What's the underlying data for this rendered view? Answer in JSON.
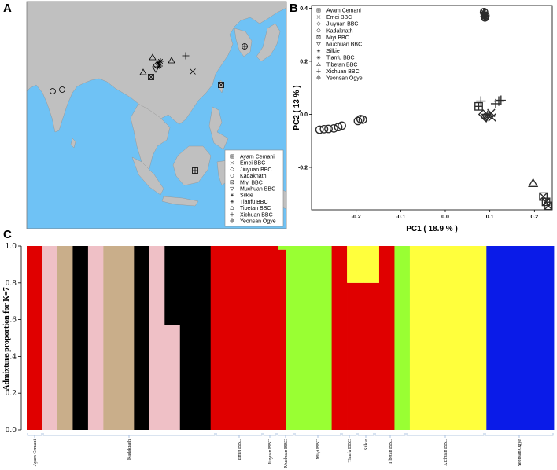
{
  "panels": {
    "a": "A",
    "b": "B",
    "c": "C"
  },
  "colors": {
    "ocean": "#6fc2f5",
    "land": "#c0c0c0",
    "map_border": "#7a7a7a"
  },
  "breeds": [
    {
      "name": "Ayam Cemani",
      "marker": "boxplus"
    },
    {
      "name": "Emei BBC",
      "marker": "x"
    },
    {
      "name": "Jiuyuan BBC",
      "marker": "diamond"
    },
    {
      "name": "Kadaknath",
      "marker": "circle"
    },
    {
      "name": "Miyi BBC",
      "marker": "boxx"
    },
    {
      "name": "Muchuan BBC",
      "marker": "tridown"
    },
    {
      "name": "Silkie",
      "marker": "star"
    },
    {
      "name": "Tianfu BBC",
      "marker": "asterisk"
    },
    {
      "name": "Tibetan BBC",
      "marker": "triup"
    },
    {
      "name": "Xichuan BBC",
      "marker": "plus"
    },
    {
      "name": "Yeonsan Ogye",
      "marker": "circleplus"
    }
  ],
  "chart_data": [
    {
      "type": "scatter",
      "panel": "B",
      "xlabel": "PC1 ( 18.9 % )",
      "ylabel": "PC2 ( 13 % )",
      "xlim": [
        -0.3,
        0.24
      ],
      "ylim": [
        -0.36,
        0.41
      ],
      "xticks": [
        "-0.2",
        "-0.1",
        "0.0",
        "0.1",
        "0.2"
      ],
      "xtick_values": [
        -0.2,
        -0.1,
        0.0,
        0.1,
        0.2
      ],
      "yticks": [
        "-0.2",
        "0.0",
        "0.2",
        "0.4"
      ],
      "ytick_values": [
        -0.2,
        0.0,
        0.2,
        0.4
      ],
      "series": [
        {
          "name": "Ayam Cemani",
          "marker": "boxplus",
          "points": [
            [
              0.075,
              0.03
            ]
          ]
        },
        {
          "name": "Emei BBC",
          "marker": "x",
          "points": [
            [
              0.097,
              -0.005
            ],
            [
              0.103,
              0.005
            ],
            [
              0.105,
              -0.012
            ]
          ]
        },
        {
          "name": "Jiuyuan BBC",
          "marker": "diamond",
          "points": [
            [
              0.085,
              0.0
            ],
            [
              0.09,
              -0.01
            ]
          ]
        },
        {
          "name": "Kadaknath",
          "marker": "circle",
          "points": [
            [
              -0.282,
              -0.058
            ],
            [
              -0.272,
              -0.056
            ],
            [
              -0.262,
              -0.055
            ],
            [
              -0.25,
              -0.053
            ],
            [
              -0.24,
              -0.048
            ],
            [
              -0.232,
              -0.043
            ],
            [
              -0.196,
              -0.025
            ],
            [
              -0.19,
              -0.018
            ],
            [
              -0.185,
              -0.02
            ]
          ]
        },
        {
          "name": "Miyi BBC",
          "marker": "boxx",
          "points": [
            [
              0.22,
              -0.31
            ],
            [
              0.226,
              -0.33
            ],
            [
              0.231,
              -0.345
            ]
          ]
        },
        {
          "name": "Muchuan BBC",
          "marker": "tridown",
          "points": [
            [
              0.092,
              -0.012
            ]
          ]
        },
        {
          "name": "Silkie",
          "marker": "star",
          "points": [
            [
              0.086,
              0.385
            ],
            [
              0.088,
              0.376
            ],
            [
              0.089,
              0.368
            ],
            [
              0.087,
              0.37
            ]
          ]
        },
        {
          "name": "Tianfu BBC",
          "marker": "asterisk",
          "points": [
            [
              0.095,
              -0.002
            ]
          ]
        },
        {
          "name": "Tibetan BBC",
          "marker": "triup",
          "points": [
            [
              0.197,
              -0.26
            ]
          ]
        },
        {
          "name": "Xichuan BBC",
          "marker": "plus",
          "points": [
            [
              0.08,
              0.05
            ],
            [
              0.113,
              0.04
            ],
            [
              0.12,
              0.05
            ],
            [
              0.125,
              0.053
            ]
          ]
        },
        {
          "name": "Yeonsan Ogye",
          "marker": "circleplus",
          "points": [
            [
              0.087,
              0.385
            ],
            [
              0.09,
              0.372
            ],
            [
              0.089,
              0.365
            ]
          ]
        }
      ]
    },
    {
      "type": "bar",
      "panel": "C",
      "stacked": true,
      "ylabel": "Admixture proportion for K=7",
      "ylim": [
        0,
        1
      ],
      "yticks": [
        "0.0",
        "0.2",
        "0.4",
        "0.6",
        "0.8",
        "1.0"
      ],
      "ytick_values": [
        0,
        0.2,
        0.4,
        0.6,
        0.8,
        1.0
      ],
      "components": [
        "red",
        "pink",
        "tan",
        "black",
        "green",
        "yellow",
        "blue"
      ],
      "component_colors": {
        "red": "#e00000",
        "pink": "#efc0c6",
        "tan": "#c9ae8a",
        "black": "#000000",
        "green": "#99ff33",
        "yellow": "#ffff3c",
        "blue": "#0a1be8"
      },
      "groups": [
        {
          "name": "Ayam Cemani",
          "weight": 1
        },
        {
          "name": "Kadaknath",
          "weight": 11
        },
        {
          "name": "Emei BBC",
          "weight": 3
        },
        {
          "name": "Jiuyuan BBC",
          "weight": 0.9
        },
        {
          "name": "Muchuan BBC",
          "weight": 1.1
        },
        {
          "name": "Miyi BBC",
          "weight": 3
        },
        {
          "name": "Tianfu BBC",
          "weight": 1
        },
        {
          "name": "Silkie",
          "weight": 1.1
        },
        {
          "name": "Tibetan BBC",
          "weight": 2
        },
        {
          "name": "Xichuan BBC",
          "weight": 5
        },
        {
          "name": "Yeonsan Ogye",
          "weight": 4.4
        }
      ],
      "segments": [
        {
          "weight": 1.0,
          "p": {
            "red": 1
          }
        },
        {
          "weight": 1.0,
          "p": {
            "pink": 1
          }
        },
        {
          "weight": 1.0,
          "p": {
            "tan": 1
          }
        },
        {
          "weight": 1.0,
          "p": {
            "black": 1
          }
        },
        {
          "weight": 1.0,
          "p": {
            "pink": 1
          }
        },
        {
          "weight": 2.0,
          "p": {
            "tan": 1
          }
        },
        {
          "weight": 1.0,
          "p": {
            "black": 1
          }
        },
        {
          "weight": 1.0,
          "p": {
            "pink": 1
          }
        },
        {
          "weight": 1.0,
          "p": {
            "pink": 0.57,
            "black": 0.43
          }
        },
        {
          "weight": 2.0,
          "p": {
            "black": 1
          }
        },
        {
          "weight": 3.0,
          "p": {
            "red": 1
          }
        },
        {
          "weight": 0.9,
          "p": {
            "red": 1
          }
        },
        {
          "weight": 0.5,
          "p": {
            "red": 1
          }
        },
        {
          "weight": 0.5,
          "p": {
            "red": 0.98,
            "green": 0.02
          }
        },
        {
          "weight": 3.0,
          "p": {
            "green": 1
          }
        },
        {
          "weight": 1.0,
          "p": {
            "red": 1
          }
        },
        {
          "weight": 1.1,
          "p": {
            "red": 0.8,
            "yellow": 0.2
          }
        },
        {
          "weight": 1.0,
          "p": {
            "red": 0.8,
            "yellow": 0.2
          }
        },
        {
          "weight": 1.0,
          "p": {
            "red": 1
          }
        },
        {
          "weight": 1.0,
          "p": {
            "green": 1
          }
        },
        {
          "weight": 5.0,
          "p": {
            "yellow": 1
          }
        },
        {
          "weight": 4.4,
          "p": {
            "blue": 1
          }
        }
      ]
    }
  ]
}
